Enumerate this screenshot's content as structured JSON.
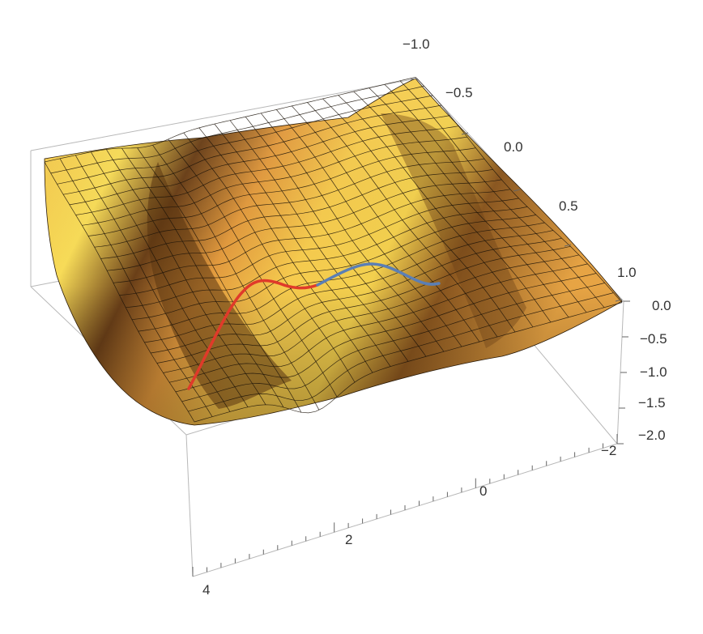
{
  "chart_data": {
    "type": "surface3d",
    "title": "",
    "xlabel": "",
    "ylabel": "",
    "zlabel": "",
    "x_range": [
      -2,
      4
    ],
    "y_range": [
      -1,
      1
    ],
    "z_range": [
      -2,
      0
    ],
    "x_ticks": [
      {
        "value": -2,
        "label": "−2"
      },
      {
        "value": 0,
        "label": "0"
      },
      {
        "value": 2,
        "label": "2"
      },
      {
        "value": 4,
        "label": "4"
      }
    ],
    "y_ticks": [
      {
        "value": -1.0,
        "label": "−1.0"
      },
      {
        "value": -0.5,
        "label": "−0.5"
      },
      {
        "value": 0.0,
        "label": "0.0"
      },
      {
        "value": 0.5,
        "label": "0.5"
      },
      {
        "value": 1.0,
        "label": "1.0"
      }
    ],
    "z_ticks": [
      {
        "value": 0.0,
        "label": "0.0"
      },
      {
        "value": -0.5,
        "label": "−0.5"
      },
      {
        "value": -1.0,
        "label": "−1.0"
      },
      {
        "value": -1.5,
        "label": "−1.5"
      },
      {
        "value": -2.0,
        "label": "−2.0"
      }
    ],
    "surface_color": "#e89a3c",
    "surface_highlight": "#f7d24a",
    "surface_shadow": "#7a4a1c",
    "curves": [
      {
        "color": "#e03a2a",
        "x": [
          3.8,
          3.2,
          2.6,
          2.0,
          1.5
        ],
        "y": [
          0.0,
          0.0,
          0.0,
          0.0,
          0.0
        ],
        "z": [
          -1.45,
          -0.85,
          -0.45,
          -0.5,
          -0.55
        ]
      },
      {
        "color": "#5b7fb5",
        "x": [
          1.5,
          1.0,
          0.5,
          0.0,
          -0.3
        ],
        "y": [
          0.0,
          0.0,
          0.0,
          0.0,
          0.0
        ],
        "z": [
          -0.55,
          -0.45,
          -0.3,
          -0.45,
          -0.5
        ]
      }
    ]
  }
}
